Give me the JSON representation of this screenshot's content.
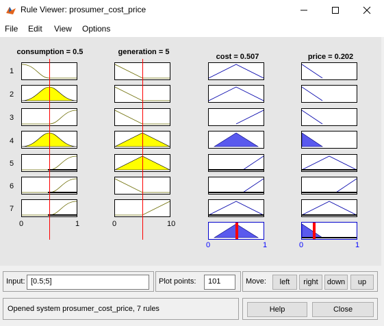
{
  "window": {
    "title": "Rule Viewer: prosumer_cost_price"
  },
  "menu": {
    "file": "File",
    "edit": "Edit",
    "view": "View",
    "options": "Options"
  },
  "variables": {
    "consumption": {
      "title": "consumption = 0.5",
      "ticks": [
        "0",
        "1"
      ]
    },
    "generation": {
      "title": "generation = 5",
      "ticks": [
        "0",
        "10"
      ]
    },
    "cost": {
      "title": "cost = 0.507",
      "ticks": [
        "0",
        "1"
      ]
    },
    "price": {
      "title": "price = 0.202",
      "ticks": [
        "0",
        "1"
      ]
    }
  },
  "rules": [
    "1",
    "2",
    "3",
    "4",
    "5",
    "6",
    "7"
  ],
  "bottom": {
    "input_label": "Input:",
    "input_value": "[0.5;5]",
    "plot_points_label": "Plot points:",
    "plot_points_value": "101",
    "move_label": "Move:",
    "left": "left",
    "right": "right",
    "down": "down",
    "up": "up",
    "status": "Opened system prosumer_cost_price, 7 rules",
    "help": "Help",
    "close": "Close"
  },
  "colors": {
    "input_fill": "#ffff00",
    "output_fill": "#5a5aee",
    "marker": "#ff0000"
  }
}
